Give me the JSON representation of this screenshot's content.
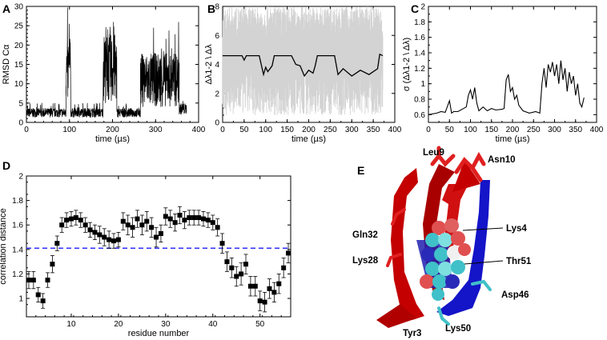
{
  "chart_data": [
    {
      "panel": "A",
      "type": "line",
      "xlabel": "time (µs)",
      "ylabel": "RMSD Cα",
      "xlim": [
        0,
        400
      ],
      "ylim": [
        0,
        30
      ],
      "xticks": [
        0,
        100,
        200,
        300,
        400
      ],
      "yticks": [
        0,
        5,
        10,
        15,
        20,
        25,
        30
      ],
      "color": "#000000",
      "regime_segments": [
        {
          "x": [
            0,
            92
          ],
          "mean": 2.5,
          "spread": 1.2
        },
        {
          "x": [
            92,
            103
          ],
          "mean": 13,
          "spread": 8
        },
        {
          "x": [
            103,
            178
          ],
          "mean": 2.5,
          "spread": 1.2
        },
        {
          "x": [
            178,
            210
          ],
          "mean": 14,
          "spread": 9
        },
        {
          "x": [
            210,
            265
          ],
          "mean": 2.5,
          "spread": 1.2
        },
        {
          "x": [
            265,
            355
          ],
          "mean": 11,
          "spread": 7
        },
        {
          "x": [
            355,
            372
          ],
          "mean": 3.5,
          "spread": 1.5
        }
      ]
    },
    {
      "panel": "B",
      "type": "line",
      "xlabel": "time (µs)",
      "ylabel": "Δλ1-2 \\ Δλ",
      "xlim": [
        0,
        400
      ],
      "ylim": [
        0,
        8
      ],
      "xticks": [
        0,
        50,
        100,
        150,
        200,
        250,
        300,
        350,
        400
      ],
      "yticks": [
        0,
        2,
        4,
        6,
        8
      ],
      "band_color": "#d3d3d3",
      "line_color": "#000000",
      "series": [
        {
          "x": [
            0,
            45,
            50,
            55,
            60,
            85,
            95,
            100,
            105,
            115,
            120,
            160,
            170,
            180,
            190,
            200,
            210,
            215,
            220,
            260,
            268,
            280,
            300,
            320,
            340,
            360,
            365,
            372
          ],
          "values": [
            4.6,
            4.6,
            4.3,
            4.6,
            4.6,
            4.6,
            3.3,
            3.8,
            3.5,
            3.9,
            4.6,
            4.6,
            4.0,
            3.9,
            3.2,
            3.6,
            3.4,
            3.9,
            4.6,
            4.6,
            3.3,
            3.7,
            3.2,
            3.6,
            3.3,
            3.7,
            4.7,
            4.6
          ]
        }
      ]
    },
    {
      "panel": "C",
      "type": "line",
      "xlabel": "time (µs)",
      "ylabel": "σ (Δλ1-2 \\ Δλ)",
      "xlim": [
        0,
        400
      ],
      "ylim": [
        0.5,
        2
      ],
      "xticks": [
        0,
        50,
        100,
        150,
        200,
        250,
        300,
        350,
        400
      ],
      "yticks": [
        0.6,
        0.8,
        1,
        1.2,
        1.4,
        1.6,
        1.8,
        2
      ],
      "color": "#000000",
      "series": [
        {
          "x": [
            0,
            20,
            30,
            40,
            50,
            55,
            60,
            70,
            90,
            95,
            100,
            105,
            110,
            115,
            120,
            130,
            140,
            150,
            160,
            175,
            180,
            185,
            190,
            195,
            200,
            205,
            210,
            215,
            225,
            240,
            255,
            265,
            270,
            275,
            280,
            285,
            290,
            295,
            300,
            305,
            310,
            315,
            320,
            325,
            330,
            335,
            340,
            345,
            350,
            355,
            360,
            365,
            370
          ],
          "values": [
            0.6,
            0.62,
            0.64,
            0.63,
            0.78,
            0.62,
            0.64,
            0.64,
            0.7,
            0.85,
            0.92,
            0.8,
            0.95,
            0.75,
            0.65,
            0.7,
            0.65,
            0.68,
            0.66,
            0.67,
            0.68,
            1.05,
            1.12,
            0.9,
            0.95,
            0.8,
            0.85,
            0.72,
            0.65,
            0.62,
            0.64,
            0.62,
            1.0,
            1.2,
            0.95,
            1.25,
            1.15,
            1.28,
            1.1,
            1.25,
            1.0,
            1.3,
            1.05,
            1.2,
            0.9,
            1.15,
            1.0,
            1.1,
            0.85,
            1.0,
            0.75,
            0.7,
            0.82
          ]
        }
      ]
    },
    {
      "panel": "D",
      "type": "scatter",
      "xlabel": "residue number",
      "ylabel": "correlation distance",
      "xlim": [
        0.5,
        56.5
      ],
      "ylim": [
        0.85,
        2
      ],
      "xticks": [
        10,
        20,
        30,
        40,
        50
      ],
      "yticks": [
        1,
        1.2,
        1.4,
        1.6,
        1.8,
        2
      ],
      "reference_line": {
        "y": 1.41,
        "color": "#3030ff",
        "style": "dashed"
      },
      "marker_color": "#000000",
      "series": [
        {
          "x": [
            1,
            2,
            3,
            4,
            5,
            6,
            7,
            8,
            9,
            10,
            11,
            12,
            13,
            14,
            15,
            16,
            17,
            18,
            19,
            20,
            21,
            22,
            23,
            24,
            25,
            26,
            27,
            28,
            29,
            30,
            31,
            32,
            33,
            34,
            35,
            36,
            37,
            38,
            39,
            40,
            41,
            42,
            43,
            44,
            45,
            46,
            47,
            48,
            49,
            50,
            51,
            52,
            53,
            54,
            55,
            56
          ],
          "values": [
            1.15,
            1.15,
            1.03,
            0.98,
            1.15,
            1.28,
            1.45,
            1.6,
            1.64,
            1.65,
            1.66,
            1.64,
            1.6,
            1.56,
            1.54,
            1.52,
            1.5,
            1.48,
            1.47,
            1.48,
            1.63,
            1.6,
            1.58,
            1.65,
            1.6,
            1.63,
            1.58,
            1.5,
            1.53,
            1.67,
            1.65,
            1.62,
            1.68,
            1.64,
            1.66,
            1.66,
            1.66,
            1.65,
            1.64,
            1.62,
            1.58,
            1.45,
            1.3,
            1.25,
            1.18,
            1.2,
            1.28,
            1.1,
            1.1,
            0.98,
            0.97,
            1.08,
            1.05,
            1.12,
            1.25,
            1.37
          ],
          "errors": [
            0.07,
            0.07,
            0.06,
            0.06,
            0.06,
            0.07,
            0.06,
            0.06,
            0.06,
            0.06,
            0.06,
            0.06,
            0.06,
            0.06,
            0.06,
            0.07,
            0.07,
            0.07,
            0.06,
            0.06,
            0.07,
            0.08,
            0.08,
            0.07,
            0.08,
            0.08,
            0.08,
            0.08,
            0.07,
            0.07,
            0.07,
            0.07,
            0.07,
            0.07,
            0.06,
            0.06,
            0.06,
            0.06,
            0.06,
            0.06,
            0.07,
            0.08,
            0.08,
            0.08,
            0.08,
            0.09,
            0.08,
            0.08,
            0.08,
            0.08,
            0.08,
            0.08,
            0.08,
            0.08,
            0.08,
            0.08
          ]
        }
      ]
    }
  ],
  "panels": {
    "A": {
      "letter": "A"
    },
    "B": {
      "letter": "B"
    },
    "C": {
      "letter": "C"
    },
    "D": {
      "letter": "D"
    },
    "E": {
      "letter": "E"
    }
  },
  "structure": {
    "labels": [
      "Leu9",
      "Asn10",
      "Gln32",
      "Lys4",
      "Lys28",
      "Thr51",
      "Asp46",
      "Tyr3",
      "Lys50"
    ],
    "colors": {
      "strand_a": "#c40000",
      "strand_b": "#1414c8",
      "sidechain_red": "#e02020",
      "cyan": "#40c0c8"
    }
  }
}
